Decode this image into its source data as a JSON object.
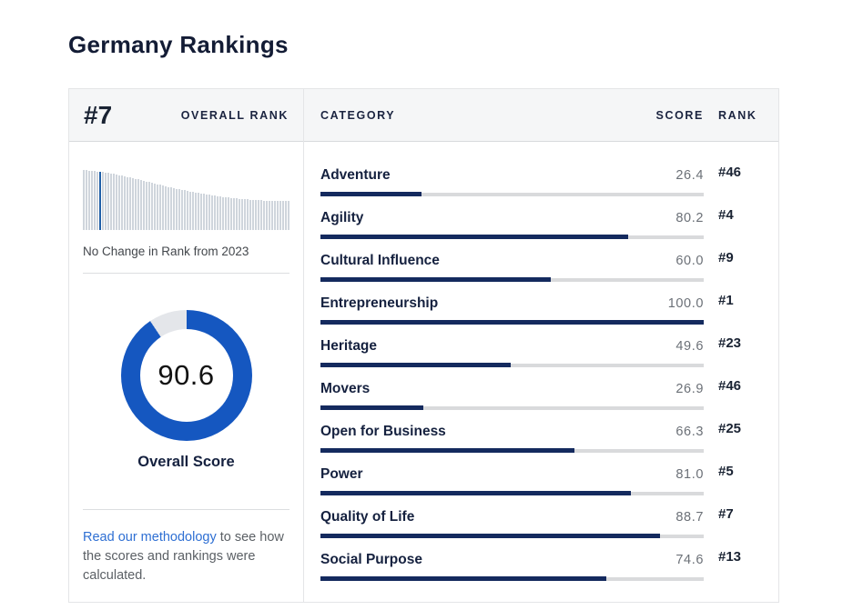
{
  "page": {
    "title": "Germany Rankings"
  },
  "overall": {
    "rank": "#7",
    "rank_label": "OVERALL RANK",
    "score": "90.6",
    "score_label": "Overall Score",
    "rank_change_note": "No Change in Rank from 2023"
  },
  "table": {
    "headers": {
      "category": "CATEGORY",
      "score": "SCORE",
      "rank": "RANK"
    },
    "rows": [
      {
        "label": "Adventure",
        "score": "26.4",
        "rank": "#46"
      },
      {
        "label": "Agility",
        "score": "80.2",
        "rank": "#4"
      },
      {
        "label": "Cultural Influence",
        "score": "60.0",
        "rank": "#9"
      },
      {
        "label": "Entrepreneurship",
        "score": "100.0",
        "rank": "#1"
      },
      {
        "label": "Heritage",
        "score": "49.6",
        "rank": "#23"
      },
      {
        "label": "Movers",
        "score": "26.9",
        "rank": "#46"
      },
      {
        "label": "Open for Business",
        "score": "66.3",
        "rank": "#25"
      },
      {
        "label": "Power",
        "score": "81.0",
        "rank": "#5"
      },
      {
        "label": "Quality of Life",
        "score": "88.7",
        "rank": "#7"
      },
      {
        "label": "Social Purpose",
        "score": "74.6",
        "rank": "#13"
      }
    ]
  },
  "methodology": {
    "link_text": "Read our methodology",
    "rest_text": " to see how the scores and rankings were calculated."
  },
  "sparkline": {
    "bar_count": 76,
    "highlight_index": 7,
    "heights": [
      66,
      66,
      65,
      65,
      65,
      64,
      64,
      64,
      63,
      63,
      62,
      62,
      61,
      60,
      60,
      59,
      58,
      58,
      57,
      56,
      56,
      55,
      54,
      53,
      53,
      52,
      51,
      50,
      50,
      49,
      48,
      47,
      47,
      46,
      45,
      45,
      44,
      44,
      43,
      42,
      42,
      41,
      41,
      40,
      40,
      39,
      39,
      38,
      38,
      37,
      37,
      36,
      36,
      36,
      35,
      35,
      35,
      34,
      34,
      34,
      34,
      33,
      33,
      33,
      33,
      33,
      32,
      32,
      32,
      32,
      32,
      32,
      32,
      32,
      32,
      32
    ]
  },
  "colors": {
    "bar_fill_navy": "#142a5e",
    "bar_track": "#d9dadc",
    "donut_blue": "#1557c0",
    "donut_track": "#e4e6ea",
    "spark_bar": "#cfd5dc",
    "spark_highlight": "#1f5fa8",
    "link_blue": "#2e6fd3"
  },
  "chart_data": [
    {
      "type": "bar",
      "name": "category-scores",
      "categories": [
        "Adventure",
        "Agility",
        "Cultural Influence",
        "Entrepreneurship",
        "Heritage",
        "Movers",
        "Open for Business",
        "Power",
        "Quality of Life",
        "Social Purpose"
      ],
      "series": [
        {
          "name": "Score",
          "values": [
            26.4,
            80.2,
            60.0,
            100.0,
            49.6,
            26.9,
            66.3,
            81.0,
            88.7,
            74.6
          ]
        },
        {
          "name": "Rank",
          "values": [
            46,
            4,
            9,
            1,
            23,
            46,
            25,
            5,
            7,
            13
          ]
        }
      ],
      "xlim": [
        0,
        100
      ],
      "orientation": "horizontal",
      "grid": false,
      "legend": false
    },
    {
      "type": "pie",
      "name": "overall-score-donut",
      "values": [
        90.6,
        9.4
      ],
      "labels": [
        "Overall Score",
        "Remainder"
      ],
      "center_text": "90.6",
      "title": "Overall Score"
    },
    {
      "type": "bar",
      "name": "rank-position-sparkline",
      "values": [
        66,
        66,
        65,
        65,
        65,
        64,
        64,
        64,
        63,
        63,
        62,
        62,
        61,
        60,
        60,
        59,
        58,
        58,
        57,
        56,
        56,
        55,
        54,
        53,
        53,
        52,
        51,
        50,
        50,
        49,
        48,
        47,
        47,
        46,
        45,
        45,
        44,
        44,
        43,
        42,
        42,
        41,
        41,
        40,
        40,
        39,
        39,
        38,
        38,
        37,
        37,
        36,
        36,
        36,
        35,
        35,
        35,
        34,
        34,
        34,
        34,
        33,
        33,
        33,
        33,
        33,
        32,
        32,
        32,
        32,
        32,
        32,
        32,
        32,
        32,
        32
      ],
      "highlight_index": 7,
      "grid": false,
      "legend": false
    }
  ]
}
